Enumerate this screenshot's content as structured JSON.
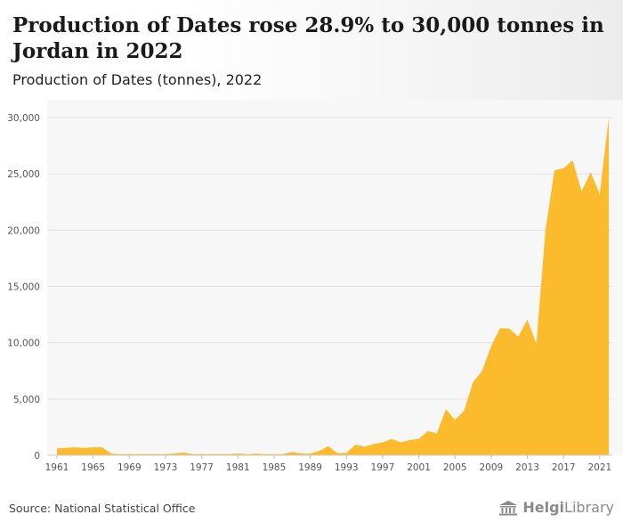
{
  "header": {
    "title": "Production of Dates rose 28.9% to 30,000 tonnes in Jordan in 2022",
    "subtitle": "Production of Dates (tonnes), 2022"
  },
  "footer": {
    "source": "Source: National Statistical Office",
    "brand_bold": "Helgi",
    "brand_regular": "Library"
  },
  "colors": {
    "area_fill": "#FBBB2C",
    "plot_background": "#F7F7F7",
    "gridline": "#E2E2E2"
  },
  "chart_data": {
    "type": "area",
    "title": "Production of Dates rose 28.9% to 30,000 tonnes in Jordan in 2022",
    "subtitle": "Production of Dates (tonnes), 2022",
    "xlabel": "",
    "ylabel": "",
    "x": [
      1961,
      1962,
      1963,
      1964,
      1965,
      1966,
      1967,
      1968,
      1969,
      1970,
      1971,
      1972,
      1973,
      1974,
      1975,
      1976,
      1977,
      1978,
      1979,
      1980,
      1981,
      1982,
      1983,
      1984,
      1985,
      1986,
      1987,
      1988,
      1989,
      1990,
      1991,
      1992,
      1993,
      1994,
      1995,
      1996,
      1997,
      1998,
      1999,
      2000,
      2001,
      2002,
      2003,
      2004,
      2005,
      2006,
      2007,
      2008,
      2009,
      2010,
      2011,
      2012,
      2013,
      2014,
      2015,
      2016,
      2017,
      2018,
      2019,
      2020,
      2021,
      2022
    ],
    "values": [
      600,
      650,
      700,
      650,
      700,
      700,
      150,
      100,
      100,
      100,
      100,
      100,
      100,
      150,
      250,
      100,
      100,
      100,
      100,
      100,
      150,
      100,
      150,
      100,
      100,
      100,
      300,
      150,
      150,
      400,
      800,
      200,
      200,
      950,
      750,
      1000,
      1150,
      1450,
      1150,
      1350,
      1450,
      2150,
      1950,
      4100,
      3150,
      3950,
      6500,
      7500,
      9700,
      11300,
      11250,
      10550,
      12050,
      9900,
      20000,
      25300,
      25500,
      26200,
      23450,
      25150,
      23200,
      30000
    ],
    "x_ticks": [
      "1961",
      "1965",
      "1969",
      "1973",
      "1977",
      "1981",
      "1985",
      "1989",
      "1993",
      "1997",
      "2001",
      "2005",
      "2009",
      "2013",
      "2017",
      "2021"
    ],
    "y_ticks": [
      "0",
      "5,000",
      "10,000",
      "15,000",
      "20,000",
      "25,000",
      "30,000"
    ],
    "y_tick_values": [
      0,
      5000,
      10000,
      15000,
      20000,
      25000,
      30000
    ],
    "ylim": [
      0,
      30000
    ],
    "xlim": [
      1961,
      2022
    ],
    "grid": true,
    "legend": "none"
  }
}
